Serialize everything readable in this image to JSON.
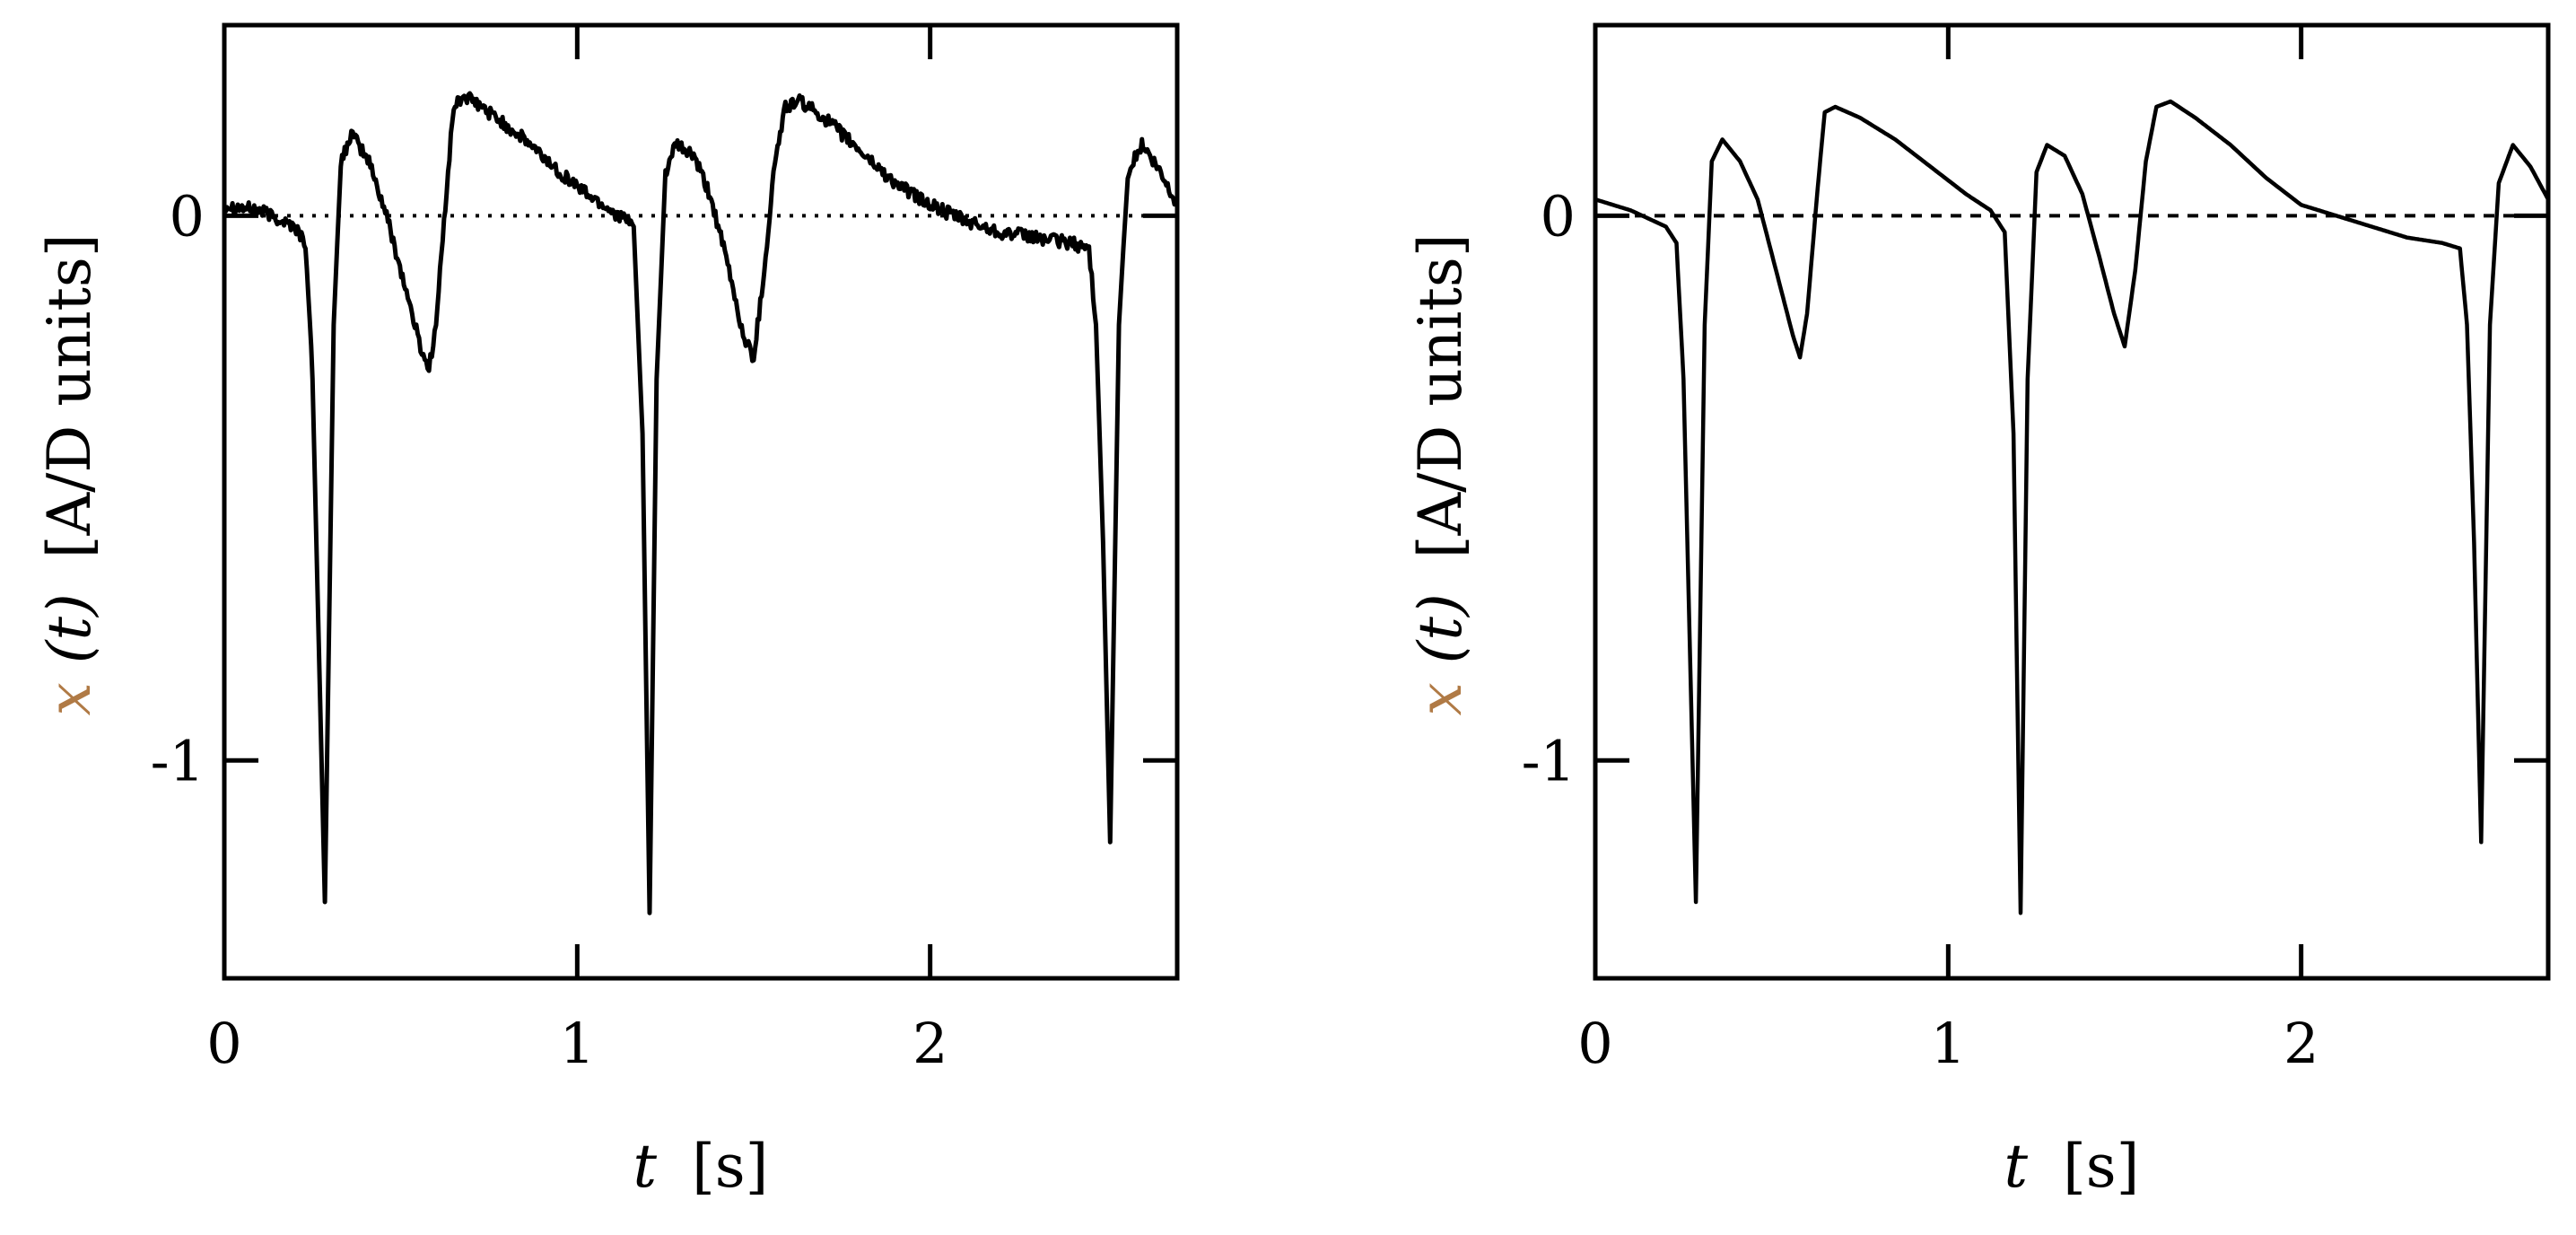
{
  "chart_data": [
    {
      "type": "line",
      "title": "",
      "xlabel_var": "t",
      "xlabel_unit": "[s]",
      "ylabel_var": "x",
      "ylabel_arg": "(t)",
      "ylabel_unit": "[A/D units]",
      "xlim": [
        0,
        2.7
      ],
      "ylim": [
        -1.4,
        0.35
      ],
      "xticks": [
        0,
        1,
        2
      ],
      "xtick_labels": [
        "0",
        "1",
        "2"
      ],
      "yticks": [
        0,
        -1
      ],
      "ytick_labels": [
        "0",
        "-1"
      ],
      "reference_line": {
        "y": 0,
        "style": "dotted"
      },
      "noise": 0.012,
      "series": [
        {
          "x": [
            0,
            0.1,
            0.2,
            0.23,
            0.25,
            0.285,
            0.31,
            0.33,
            0.36,
            0.41,
            0.46,
            0.52,
            0.56,
            0.58,
            0.6,
            0.63,
            0.65,
            0.68,
            0.75,
            0.85,
            0.95,
            1.05,
            1.12,
            1.16,
            1.185,
            1.205,
            1.225,
            1.25,
            1.28,
            1.33,
            1.38,
            1.43,
            1.47,
            1.5,
            1.53,
            1.56,
            1.59,
            1.63,
            1.7,
            1.8,
            1.9,
            2.0,
            2.1,
            2.2,
            2.3,
            2.4,
            2.45,
            2.47,
            2.49,
            2.51,
            2.535,
            2.56,
            2.6,
            2.65,
            2.7
          ],
          "y": [
            0.02,
            0.01,
            -0.02,
            -0.05,
            -0.3,
            -1.26,
            -0.2,
            0.1,
            0.15,
            0.1,
            0.0,
            -0.15,
            -0.25,
            -0.28,
            -0.2,
            0.05,
            0.2,
            0.22,
            0.19,
            0.14,
            0.08,
            0.03,
            0.0,
            -0.02,
            -0.4,
            -1.28,
            -0.3,
            0.08,
            0.13,
            0.11,
            0.03,
            -0.1,
            -0.22,
            -0.26,
            -0.1,
            0.1,
            0.2,
            0.21,
            0.18,
            0.12,
            0.06,
            0.02,
            -0.01,
            -0.03,
            -0.04,
            -0.05,
            -0.06,
            -0.2,
            -0.6,
            -1.15,
            -0.2,
            0.08,
            0.13,
            0.08,
            0.02
          ]
        }
      ]
    },
    {
      "type": "line",
      "title": "",
      "xlabel_var": "t",
      "xlabel_unit": "[s]",
      "ylabel_var": "x",
      "ylabel_arg": "(t)",
      "ylabel_unit": "[A/D units]",
      "xlim": [
        0,
        2.7
      ],
      "ylim": [
        -1.4,
        0.35
      ],
      "xticks": [
        0,
        1,
        2
      ],
      "xtick_labels": [
        "0",
        "1",
        "2"
      ],
      "yticks": [
        0,
        -1
      ],
      "ytick_labels": [
        "0",
        "-1"
      ],
      "reference_line": {
        "y": 0,
        "style": "dashed"
      },
      "noise": 0,
      "series": [
        {
          "x": [
            0,
            0.1,
            0.2,
            0.23,
            0.25,
            0.285,
            0.31,
            0.33,
            0.36,
            0.41,
            0.46,
            0.52,
            0.56,
            0.58,
            0.6,
            0.63,
            0.65,
            0.68,
            0.75,
            0.85,
            0.95,
            1.05,
            1.12,
            1.16,
            1.185,
            1.205,
            1.225,
            1.25,
            1.28,
            1.33,
            1.38,
            1.43,
            1.47,
            1.5,
            1.53,
            1.56,
            1.59,
            1.63,
            1.7,
            1.8,
            1.9,
            2.0,
            2.1,
            2.2,
            2.3,
            2.4,
            2.45,
            2.47,
            2.49,
            2.51,
            2.535,
            2.56,
            2.6,
            2.65,
            2.7
          ],
          "y": [
            0.03,
            0.01,
            -0.02,
            -0.05,
            -0.3,
            -1.26,
            -0.2,
            0.1,
            0.14,
            0.1,
            0.03,
            -0.12,
            -0.22,
            -0.26,
            -0.18,
            0.05,
            0.19,
            0.2,
            0.18,
            0.14,
            0.09,
            0.04,
            0.01,
            -0.03,
            -0.4,
            -1.28,
            -0.3,
            0.08,
            0.13,
            0.11,
            0.04,
            -0.08,
            -0.18,
            -0.24,
            -0.1,
            0.1,
            0.2,
            0.21,
            0.18,
            0.13,
            0.07,
            0.02,
            0.0,
            -0.02,
            -0.04,
            -0.05,
            -0.06,
            -0.2,
            -0.6,
            -1.15,
            -0.2,
            0.06,
            0.13,
            0.09,
            0.03
          ]
        }
      ]
    }
  ]
}
